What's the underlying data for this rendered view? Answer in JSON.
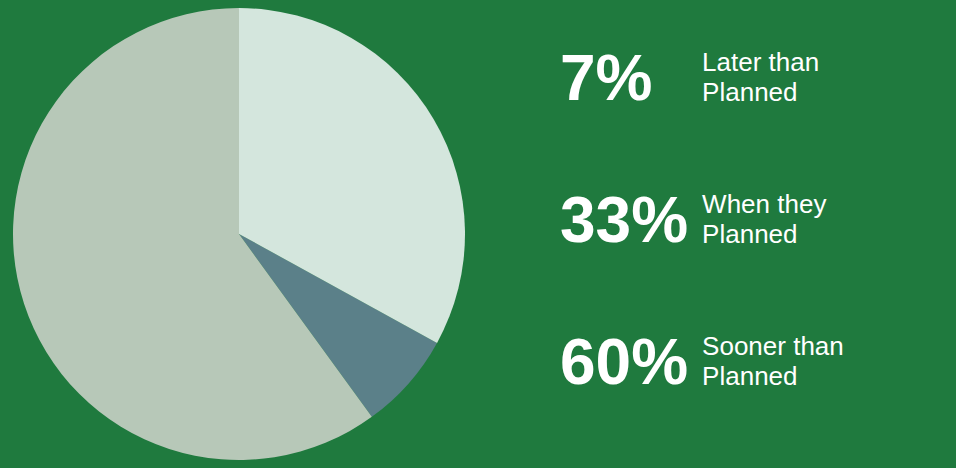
{
  "chart_data": {
    "type": "pie",
    "categories": [
      "Later than Planned",
      "When they Planned",
      "Sooner than Planned"
    ],
    "values": [
      7,
      33,
      60
    ],
    "value_labels": [
      "7%",
      "33%",
      "60%"
    ],
    "colors": [
      "#5b8089",
      "#d4e6dd",
      "#b7c8b8"
    ],
    "data_labels": true
  }
}
